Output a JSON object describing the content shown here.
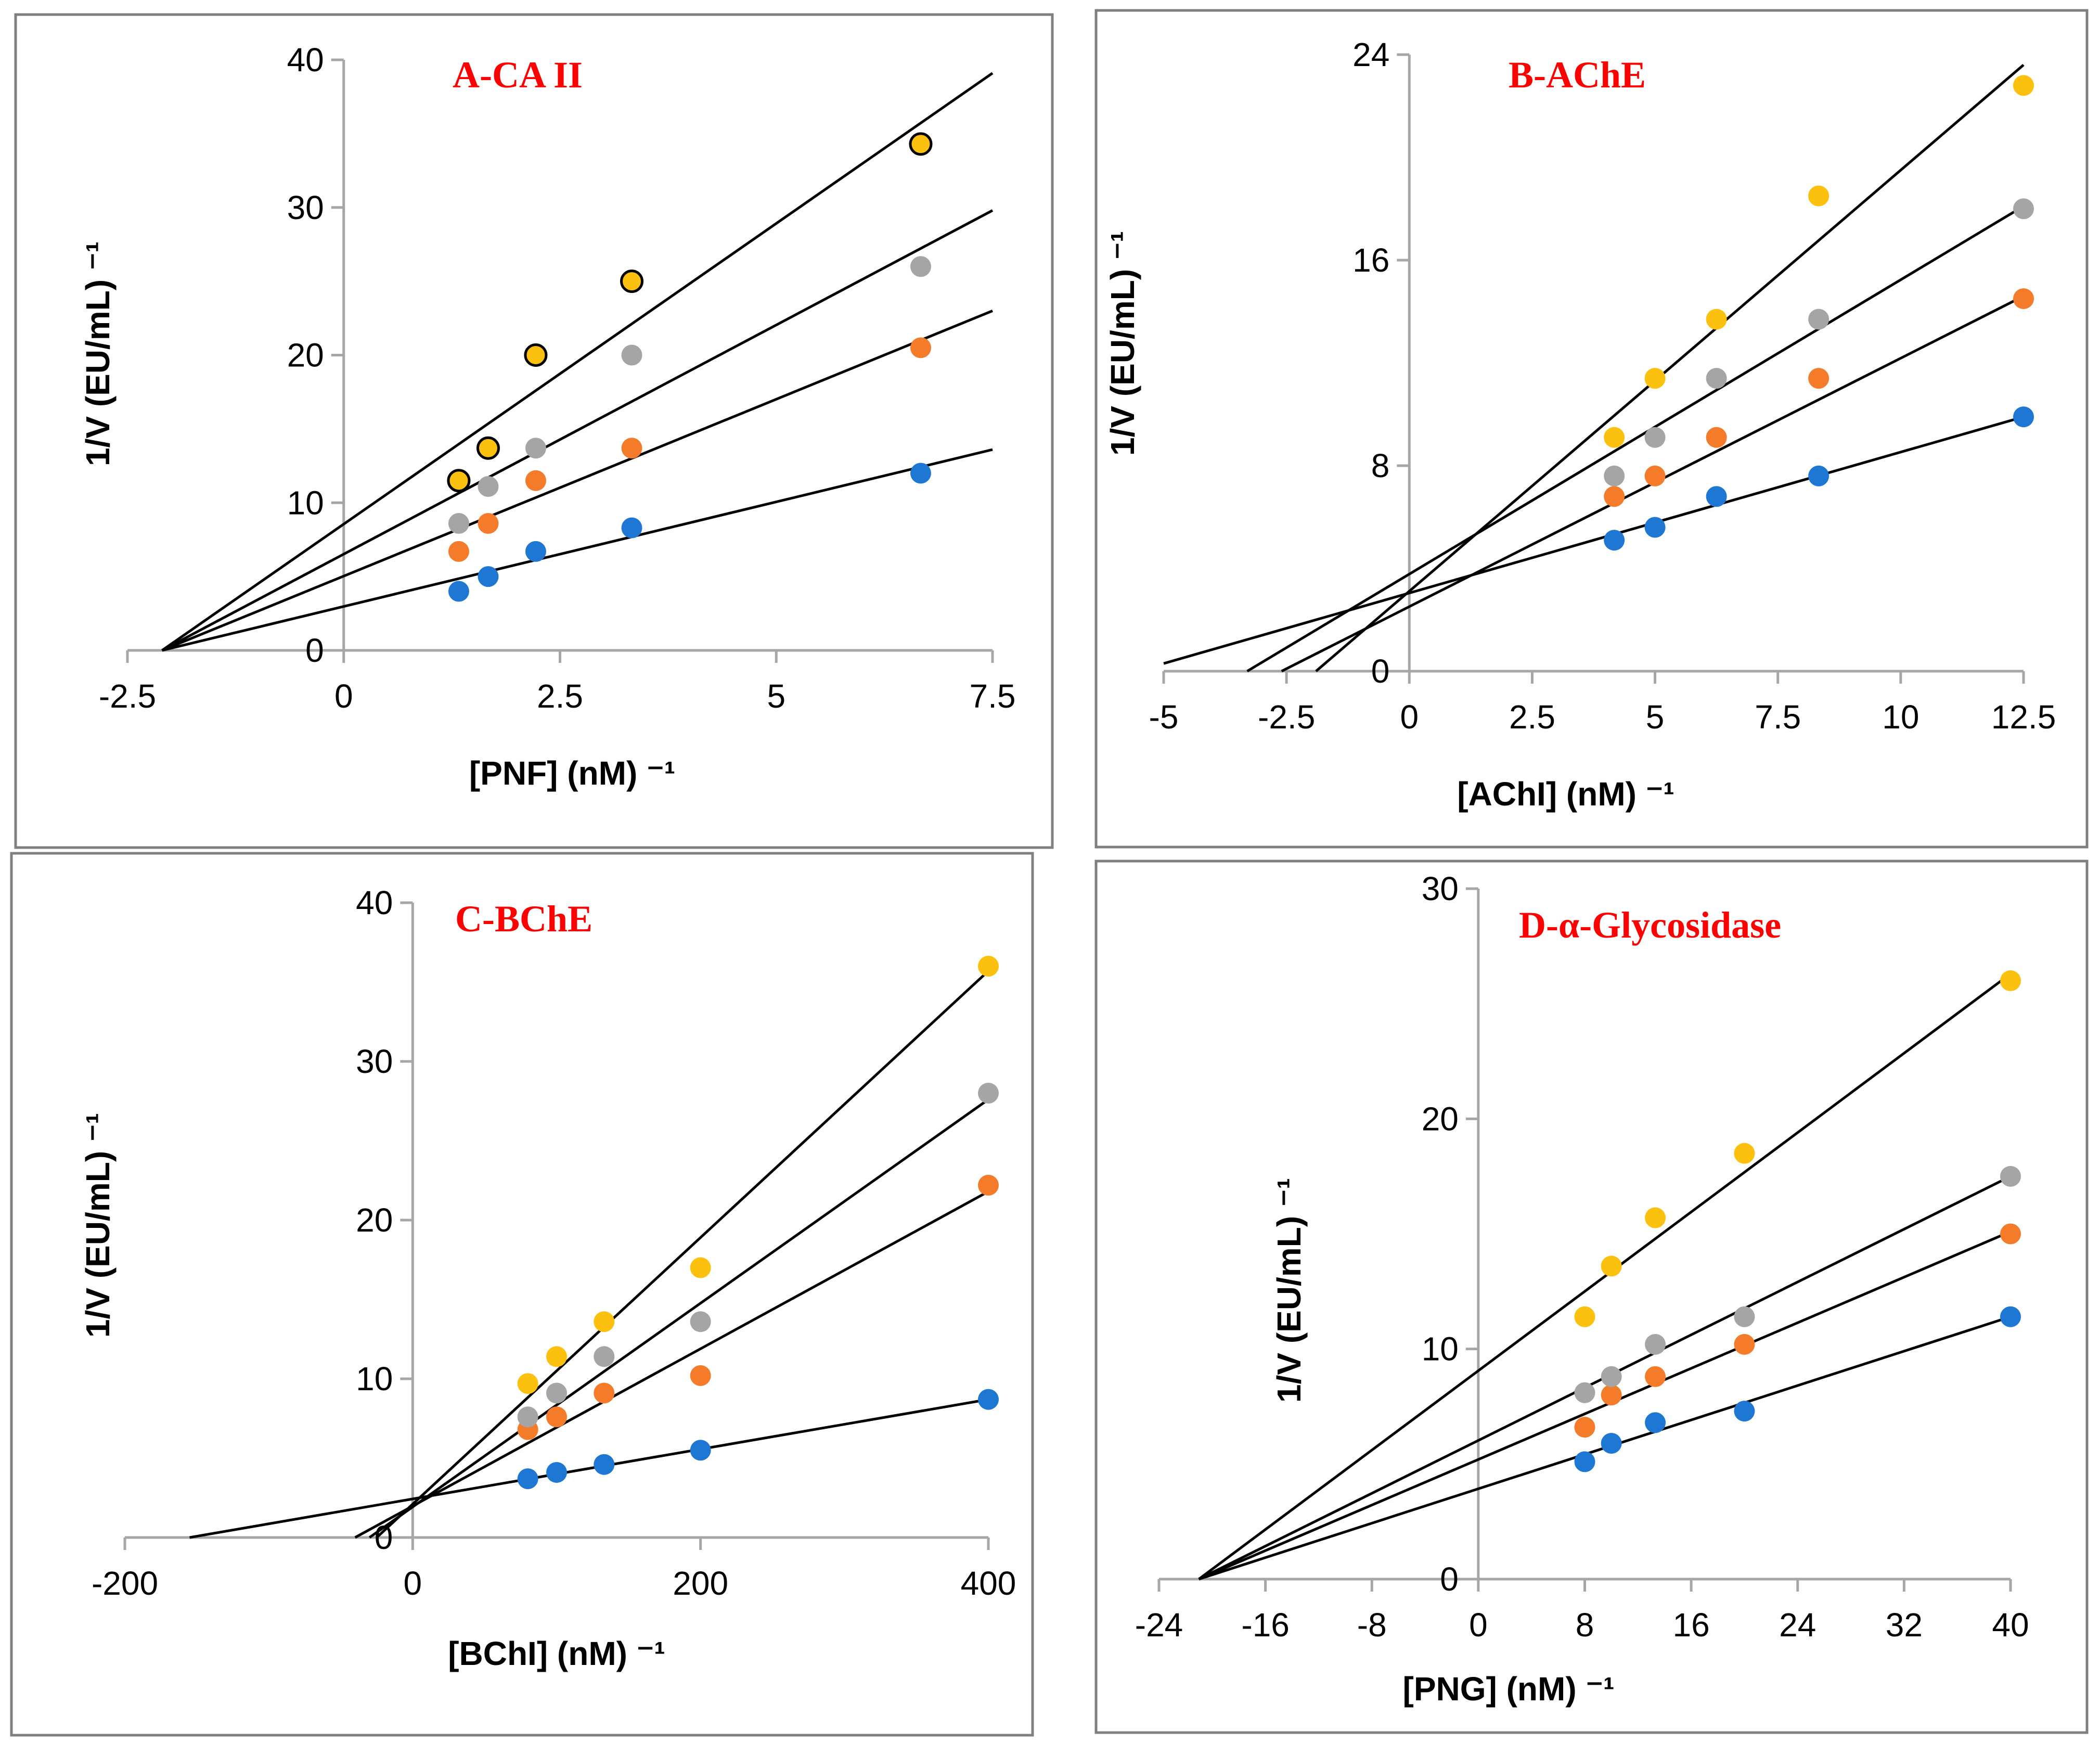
{
  "colors": {
    "blue": "#1f77d4",
    "orange": "#f47b2a",
    "gray": "#a5a5a5",
    "yellow": "#fcc10e",
    "title_red": "#ff0000"
  },
  "chart_data": [
    {
      "id": "a",
      "type": "scatter",
      "title": "A-CA II",
      "xlabel": "[PNF] (nM) ⁻¹",
      "ylabel": "1/V (EU/mL) ⁻¹",
      "xlim": [
        -2.5,
        7.5
      ],
      "ylim": [
        0,
        40
      ],
      "xticks": [
        -2.5,
        0,
        2.5,
        5,
        7.5
      ],
      "xtick_labels": [
        "-2.5",
        "0",
        "2.5",
        "5",
        "7.5"
      ],
      "yticks": [
        0,
        10,
        20,
        30,
        40
      ],
      "ytick_labels": [
        "0",
        "10",
        "20",
        "30",
        "40"
      ],
      "series": [
        {
          "name": "blue",
          "color": "#1f77d4",
          "outlined": false,
          "x": [
            1.33,
            1.67,
            2.22,
            3.33,
            6.67
          ],
          "y": [
            4.0,
            5.0,
            6.7,
            8.3,
            12.0
          ],
          "fit": [
            [
              -2.1,
              0
            ],
            [
              7.5,
              13.6
            ]
          ]
        },
        {
          "name": "orange",
          "color": "#f47b2a",
          "outlined": false,
          "x": [
            1.33,
            1.67,
            2.22,
            3.33,
            6.67
          ],
          "y": [
            6.7,
            8.6,
            11.5,
            13.7,
            20.5
          ],
          "fit": [
            [
              -2.1,
              0
            ],
            [
              7.5,
              23.0
            ]
          ]
        },
        {
          "name": "gray",
          "color": "#a5a5a5",
          "outlined": false,
          "x": [
            1.33,
            1.67,
            2.22,
            3.33,
            6.67
          ],
          "y": [
            8.6,
            11.1,
            13.7,
            20.0,
            26.0
          ],
          "fit": [
            [
              -2.1,
              0
            ],
            [
              7.5,
              29.8
            ]
          ]
        },
        {
          "name": "yellow",
          "color": "#fcc10e",
          "outlined": true,
          "x": [
            1.33,
            1.67,
            2.22,
            3.33,
            6.67
          ],
          "y": [
            11.5,
            13.7,
            20.0,
            25.0,
            34.3
          ],
          "fit": [
            [
              -2.1,
              0
            ],
            [
              7.5,
              39.1
            ]
          ]
        }
      ]
    },
    {
      "id": "b",
      "type": "scatter",
      "title": "B-AChE",
      "xlabel": "[AChI] (nM) ⁻¹",
      "ylabel": "1/V (EU/mL) ⁻¹",
      "xlim": [
        -5,
        12.5
      ],
      "ylim": [
        0,
        24
      ],
      "xticks": [
        -5,
        -2.5,
        0,
        2.5,
        5,
        7.5,
        10,
        12.5
      ],
      "xtick_labels": [
        "-5",
        "-2.5",
        "0",
        "2.5",
        "5",
        "7.5",
        "10",
        "12.5"
      ],
      "yticks": [
        0,
        8,
        16,
        24
      ],
      "ytick_labels": [
        "0",
        "8",
        "16",
        "24"
      ],
      "series": [
        {
          "name": "blue",
          "color": "#1f77d4",
          "outlined": false,
          "x": [
            4.17,
            5.0,
            6.25,
            8.33,
            12.5
          ],
          "y": [
            5.1,
            5.6,
            6.8,
            7.6,
            9.9
          ],
          "fit": [
            [
              -5,
              0.3
            ],
            [
              12.5,
              9.9
            ]
          ]
        },
        {
          "name": "orange",
          "color": "#f47b2a",
          "outlined": false,
          "x": [
            4.17,
            5.0,
            6.25,
            8.33,
            12.5
          ],
          "y": [
            6.8,
            7.6,
            9.1,
            11.4,
            14.5
          ],
          "fit": [
            [
              -2.6,
              0
            ],
            [
              12.5,
              14.6
            ]
          ]
        },
        {
          "name": "gray",
          "color": "#a5a5a5",
          "outlined": false,
          "x": [
            4.17,
            5.0,
            6.25,
            8.33,
            12.5
          ],
          "y": [
            7.6,
            9.1,
            11.4,
            13.7,
            18.0
          ],
          "fit": [
            [
              -3.3,
              0
            ],
            [
              12.5,
              18.1
            ]
          ]
        },
        {
          "name": "yellow",
          "color": "#fcc10e",
          "outlined": false,
          "x": [
            4.17,
            5.0,
            6.25,
            8.33,
            12.5
          ],
          "y": [
            9.1,
            11.4,
            13.7,
            18.5,
            22.8
          ],
          "fit": [
            [
              -1.9,
              0
            ],
            [
              12.5,
              23.6
            ]
          ]
        }
      ]
    },
    {
      "id": "c",
      "type": "scatter",
      "title": "C-BChE",
      "xlabel": "[BChI] (nM) ⁻¹",
      "ylabel": "1/V (EU/mL) ⁻¹",
      "xlim": [
        -200,
        400
      ],
      "ylim": [
        0,
        40
      ],
      "xticks": [
        -200,
        0,
        200,
        400
      ],
      "xtick_labels": [
        "-200",
        "0",
        "200",
        "400"
      ],
      "yticks": [
        0,
        10,
        20,
        30,
        40
      ],
      "ytick_labels": [
        "0",
        "10",
        "20",
        "30",
        "40"
      ],
      "series": [
        {
          "name": "blue",
          "color": "#1f77d4",
          "outlined": false,
          "x": [
            80,
            100,
            133,
            200,
            400
          ],
          "y": [
            3.7,
            4.1,
            4.6,
            5.5,
            8.7
          ],
          "fit": [
            [
              -155,
              0
            ],
            [
              400,
              8.7
            ]
          ]
        },
        {
          "name": "orange",
          "color": "#f47b2a",
          "outlined": false,
          "x": [
            80,
            100,
            133,
            200,
            400
          ],
          "y": [
            6.8,
            7.6,
            9.1,
            10.2,
            22.2
          ],
          "fit": [
            [
              -40,
              0
            ],
            [
              400,
              21.8
            ]
          ]
        },
        {
          "name": "gray",
          "color": "#a5a5a5",
          "outlined": false,
          "x": [
            80,
            100,
            133,
            200,
            400
          ],
          "y": [
            7.6,
            9.1,
            11.4,
            13.6,
            28.0
          ],
          "fit": [
            [
              -30,
              0
            ],
            [
              400,
              27.6
            ]
          ]
        },
        {
          "name": "yellow",
          "color": "#fcc10e",
          "outlined": false,
          "x": [
            80,
            100,
            133,
            200,
            400
          ],
          "y": [
            9.7,
            11.4,
            13.6,
            17.0,
            36.0
          ],
          "fit": [
            [
              -25,
              0
            ],
            [
              400,
              35.7
            ]
          ]
        }
      ]
    },
    {
      "id": "d",
      "type": "scatter",
      "title": "D-α-Glycosidase",
      "xlabel": "[PNG] (nM) ⁻¹",
      "ylabel": "1/V (EU/mL) ⁻¹",
      "xlim": [
        -24,
        40
      ],
      "ylim": [
        0,
        30
      ],
      "xticks": [
        -24,
        -16,
        -8,
        0,
        8,
        16,
        24,
        32,
        40
      ],
      "xtick_labels": [
        "-24",
        "-16",
        "-8",
        "0",
        "8",
        "16",
        "24",
        "32",
        "40"
      ],
      "yticks": [
        0,
        10,
        20,
        30
      ],
      "ytick_labels": [
        "0",
        "10",
        "20",
        "30"
      ],
      "series": [
        {
          "name": "blue",
          "color": "#1f77d4",
          "outlined": false,
          "x": [
            8,
            10,
            13.3,
            20,
            40
          ],
          "y": [
            5.1,
            5.9,
            6.8,
            7.3,
            11.4
          ],
          "fit": [
            [
              -21,
              0
            ],
            [
              40,
              11.4
            ]
          ]
        },
        {
          "name": "orange",
          "color": "#f47b2a",
          "outlined": false,
          "x": [
            8,
            10,
            13.3,
            20,
            40
          ],
          "y": [
            6.6,
            8.0,
            8.8,
            10.2,
            15.0
          ],
          "fit": [
            [
              -21,
              0
            ],
            [
              40,
              15.1
            ]
          ]
        },
        {
          "name": "gray",
          "color": "#a5a5a5",
          "outlined": false,
          "x": [
            8,
            10,
            13.3,
            20,
            40
          ],
          "y": [
            8.1,
            8.8,
            10.2,
            11.4,
            17.5
          ],
          "fit": [
            [
              -21,
              0
            ],
            [
              40,
              17.5
            ]
          ]
        },
        {
          "name": "yellow",
          "color": "#fcc10e",
          "outlined": false,
          "x": [
            8,
            10,
            13.3,
            20,
            40
          ],
          "y": [
            11.4,
            13.6,
            15.7,
            18.5,
            26.0
          ],
          "fit": [
            [
              -21,
              0
            ],
            [
              40,
              26.3
            ]
          ]
        }
      ]
    }
  ]
}
